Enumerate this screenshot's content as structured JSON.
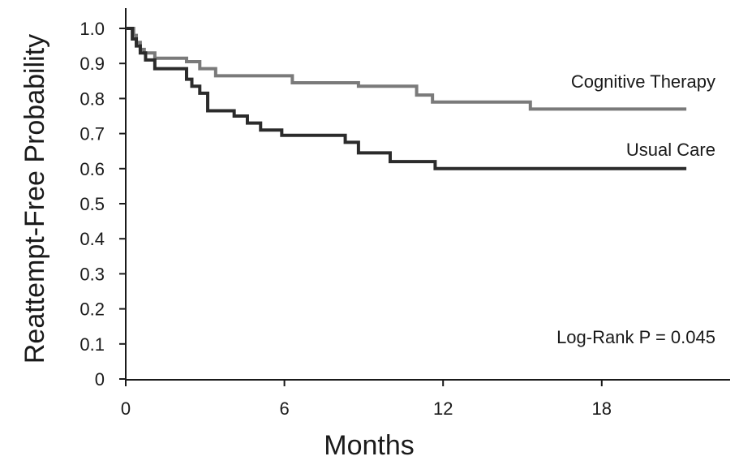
{
  "chart_data": {
    "type": "line",
    "step": true,
    "title": "",
    "xlabel": "Months",
    "ylabel": "Reattempt-Free Probability",
    "xlim": [
      0,
      23.5
    ],
    "ylim": [
      0,
      1.0
    ],
    "xticks": [
      0,
      6,
      12,
      18
    ],
    "xtick_labels": [
      "0",
      "6",
      "12",
      "18"
    ],
    "yticks": [
      0,
      0.1,
      0.2,
      0.3,
      0.4,
      0.5,
      0.6,
      0.7,
      0.8,
      0.9,
      1.0
    ],
    "ytick_labels": [
      "0",
      "0.1",
      "0.2",
      "0.3",
      "0.4",
      "0.5",
      "0.6",
      "0.7",
      "0.8",
      "0.9",
      "1.0"
    ],
    "grid": false,
    "legend": "none",
    "annotations": [
      {
        "text": "Log-Rank P = 0.045",
        "x": 22.3,
        "y": 0.12
      }
    ],
    "series": [
      {
        "name": "Cognitive Therapy",
        "label_position": {
          "x": 22.3,
          "y": 0.85
        },
        "color": "#7a7a7a",
        "x": [
          0,
          0.3,
          0.4,
          0.55,
          0.7,
          1.1,
          2.3,
          2.8,
          3.4,
          6.3,
          8.8,
          11.0,
          11.6,
          15.3,
          21.2
        ],
        "y": [
          1.0,
          0.98,
          0.96,
          0.94,
          0.93,
          0.915,
          0.905,
          0.885,
          0.865,
          0.845,
          0.835,
          0.81,
          0.79,
          0.77,
          0.77
        ]
      },
      {
        "name": "Usual Care",
        "label_position": {
          "x": 22.3,
          "y": 0.655
        },
        "color": "#2b2b2b",
        "x": [
          0,
          0.25,
          0.4,
          0.55,
          0.75,
          1.1,
          2.3,
          2.5,
          2.8,
          3.1,
          4.1,
          4.6,
          5.1,
          5.9,
          8.3,
          8.8,
          10.0,
          11.7,
          21.2
        ],
        "y": [
          1.0,
          0.97,
          0.95,
          0.93,
          0.91,
          0.885,
          0.855,
          0.835,
          0.815,
          0.765,
          0.75,
          0.73,
          0.71,
          0.695,
          0.675,
          0.645,
          0.62,
          0.6,
          0.6
        ]
      }
    ]
  }
}
